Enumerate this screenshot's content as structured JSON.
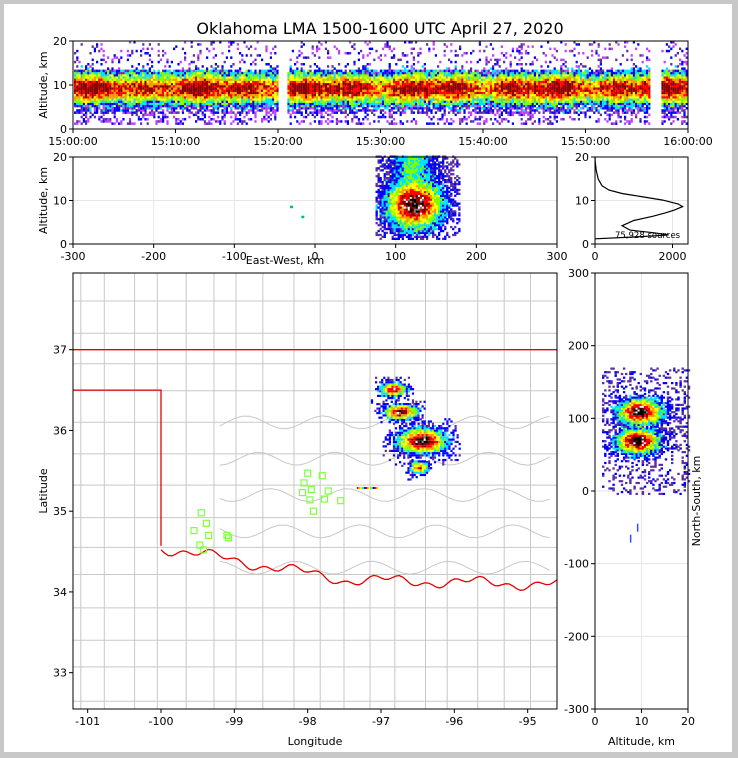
{
  "chart_data": [
    {
      "id": "time_height",
      "type": "heatmap",
      "title": "Oklahoma LMA 1500-1600 UTC April 27, 2020",
      "ylabel": "Altitude, km",
      "xlim": [
        "15:00:00",
        "16:00:00"
      ],
      "ylim": [
        0,
        20
      ],
      "x_ticks": [
        "15:00:00",
        "15:10:00",
        "15:20:00",
        "15:30:00",
        "15:40:00",
        "15:50:00",
        "16:00:00"
      ],
      "y_ticks": [
        0,
        10,
        20
      ],
      "gaps_minutes": [
        [
          19.9,
          20.8
        ],
        [
          56.2,
          57.2
        ]
      ],
      "altitude_range_km": [
        1,
        20
      ],
      "peak_altitude_km": 9
    },
    {
      "id": "ew_altitude",
      "type": "heatmap",
      "xlabel": "East-West, km",
      "ylabel": "Altitude, km",
      "xlim": [
        -300,
        300
      ],
      "ylim": [
        0,
        20
      ],
      "x_ticks": [
        -300,
        -200,
        -100,
        0,
        100,
        200,
        300
      ],
      "y_ticks": [
        0,
        10,
        20
      ],
      "main_cell": {
        "x_range_km": [
          75,
          180
        ],
        "core_km": {
          "x": 122,
          "z": 9
        }
      },
      "isolated_sources_km": [
        {
          "x": -31,
          "z": 8.8
        },
        {
          "x": -17,
          "z": 6.5
        }
      ]
    },
    {
      "id": "altitude_histogram",
      "type": "line",
      "annotation": "75,928 sources",
      "xlim": [
        0,
        2400
      ],
      "ylim": [
        0,
        20
      ],
      "x_ticks": [
        0,
        2000
      ],
      "y_ticks": [
        0,
        10,
        20
      ],
      "profile": [
        [
          0,
          1.2
        ],
        [
          1400,
          1.8
        ],
        [
          1900,
          2.1
        ],
        [
          1500,
          2.6
        ],
        [
          900,
          3.2
        ],
        [
          700,
          4.2
        ],
        [
          1000,
          5.4
        ],
        [
          1500,
          6.4
        ],
        [
          1800,
          7.1
        ],
        [
          2050,
          7.8
        ],
        [
          2260,
          8.6
        ],
        [
          2150,
          9.2
        ],
        [
          1750,
          10.1
        ],
        [
          1200,
          10.9
        ],
        [
          700,
          11.6
        ],
        [
          360,
          12.4
        ],
        [
          180,
          13.4
        ],
        [
          80,
          15
        ],
        [
          30,
          17
        ],
        [
          5,
          19
        ],
        [
          0,
          20
        ]
      ]
    },
    {
      "id": "plan_view",
      "type": "heatmap",
      "xlabel": "Longitude",
      "ylabel": "Latitude",
      "xlim": [
        -101.2,
        -94.6
      ],
      "ylim": [
        32.55,
        37.95
      ],
      "x_ticks": [
        -101,
        -100,
        -99,
        -98,
        -97,
        -96,
        -95
      ],
      "y_ticks": [
        33,
        34,
        35,
        36,
        37
      ],
      "storms": [
        {
          "lon": -96.45,
          "lat": 35.88,
          "core": 3
        },
        {
          "lon": -96.74,
          "lat": 36.24,
          "core": 2
        },
        {
          "lon": -96.85,
          "lat": 36.52,
          "core": 1
        },
        {
          "lon": -96.5,
          "lat": 35.55,
          "core": 0
        }
      ],
      "stations": [
        [
          -99.45,
          34.98
        ],
        [
          -99.38,
          34.85
        ],
        [
          -99.55,
          34.76
        ],
        [
          -99.35,
          34.7
        ],
        [
          -99.47,
          34.58
        ],
        [
          -99.42,
          34.52
        ],
        [
          -99.1,
          34.7
        ],
        [
          -99.08,
          34.67
        ],
        [
          -98.0,
          35.47
        ],
        [
          -97.8,
          35.44
        ],
        [
          -98.05,
          35.35
        ],
        [
          -97.95,
          35.27
        ],
        [
          -97.72,
          35.25
        ],
        [
          -98.07,
          35.23
        ],
        [
          -97.77,
          35.15
        ],
        [
          -97.55,
          35.13
        ],
        [
          -97.97,
          35.14
        ],
        [
          -97.92,
          35.0
        ]
      ]
    },
    {
      "id": "ns_altitude",
      "type": "heatmap",
      "xlabel": "Altitude, km",
      "ylabel": "North-South, km",
      "xlim": [
        0,
        20
      ],
      "ylim": [
        -300,
        300
      ],
      "x_ticks": [
        0,
        10,
        20
      ],
      "y_ticks": [
        -300,
        -200,
        -100,
        0,
        100,
        200,
        300
      ],
      "cells": [
        {
          "y_km": 68,
          "core_alt_km": 9
        },
        {
          "y_km": 108,
          "core_alt_km": 9.5
        }
      ]
    }
  ],
  "colors": {
    "border_red": "#e60000",
    "county_gray": "#c8c8c8",
    "station_green": "#80ff40",
    "frame_gray": "#c8c8c8"
  }
}
